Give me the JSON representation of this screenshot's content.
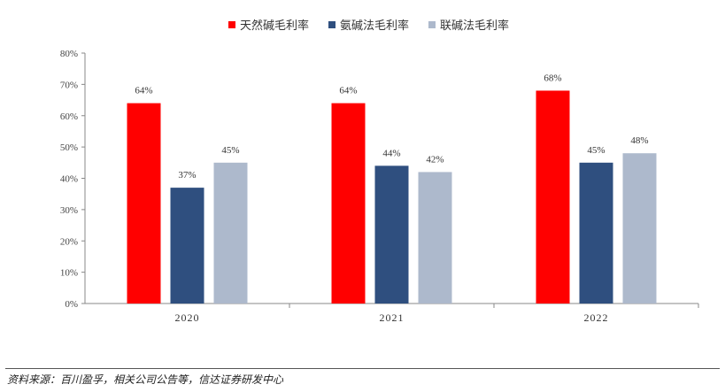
{
  "chart_data": {
    "type": "bar",
    "categories": [
      "2020",
      "2021",
      "2022"
    ],
    "series": [
      {
        "name": "天然碱毛利率",
        "color": "#ff0000",
        "values": [
          64,
          64,
          68
        ],
        "labels": [
          "64%",
          "64%",
          "68%"
        ]
      },
      {
        "name": "氨碱法毛利率",
        "color": "#2f4f7f",
        "values": [
          37,
          44,
          45
        ],
        "labels": [
          "37%",
          "44%",
          "45%"
        ]
      },
      {
        "name": "联碱法毛利率",
        "color": "#adb9cc",
        "values": [
          45,
          42,
          48
        ],
        "labels": [
          "45%",
          "42%",
          "48%"
        ]
      }
    ],
    "ylim": [
      0,
      80
    ],
    "yticks": [
      "0%",
      "10%",
      "20%",
      "30%",
      "40%",
      "50%",
      "60%",
      "70%",
      "80%"
    ],
    "legend_position": "top-center",
    "grid": false
  },
  "source": "资料来源：百川盈孚，相关公司公告等，信达证券研发中心"
}
